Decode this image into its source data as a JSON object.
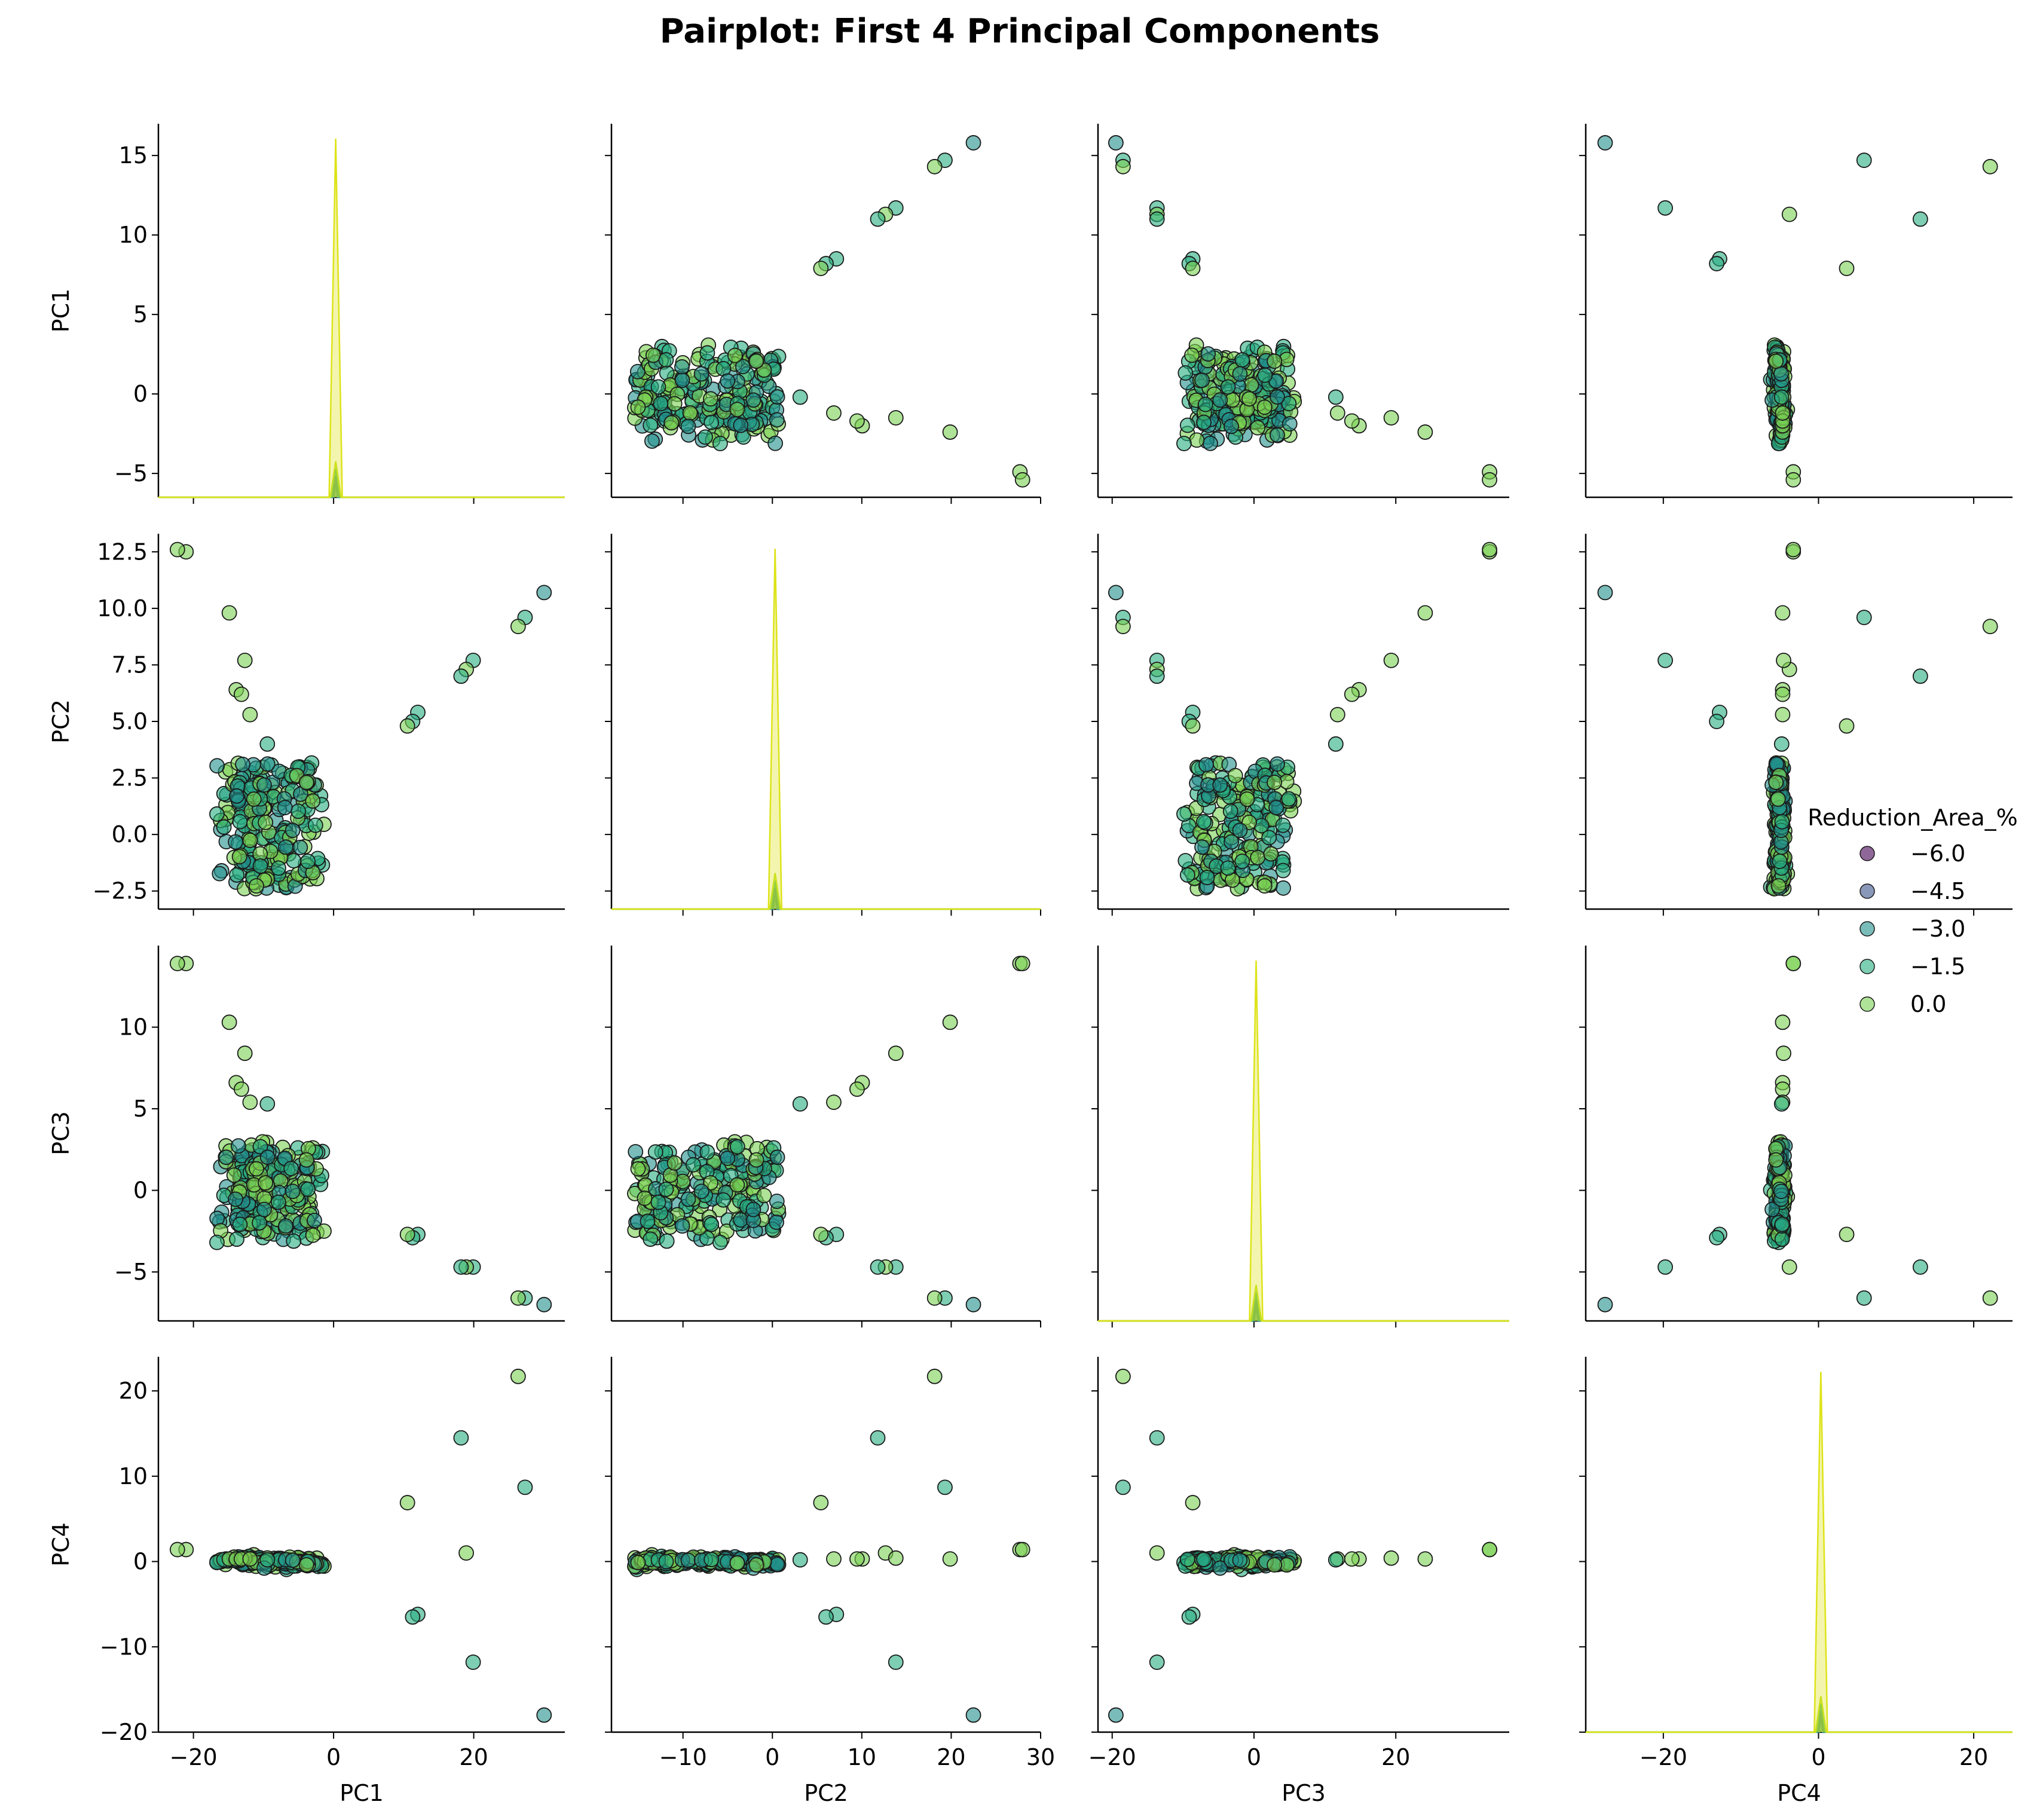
{
  "chart_data": {
    "type": "scatter",
    "title": "Pairplot: First 4 Principal Components",
    "variables": [
      "PC1",
      "PC2",
      "PC3",
      "PC4"
    ],
    "hue": {
      "name": "Reduction_Area_%",
      "colormap": "viridis",
      "entries": [
        {
          "label": "−6.0",
          "color": "#440154"
        },
        {
          "label": "−4.5",
          "color": "#3b528b"
        },
        {
          "label": "−3.0",
          "color": "#21908c"
        },
        {
          "label": "−1.5",
          "color": "#27ad81"
        },
        {
          "label": "0.0",
          "color": "#7ad151"
        }
      ]
    },
    "legend_position": "right",
    "grid": false,
    "axes": {
      "PC1": {
        "range": [
          -6.5,
          17
        ],
        "ticks": [
          -5,
          0,
          5,
          10,
          15
        ],
        "tick_labels": [
          "−5",
          "0",
          "5",
          "10",
          "15"
        ],
        "diag_range": [
          -25,
          33
        ],
        "diag_ticks": [
          -20,
          0,
          20
        ],
        "diag_tick_labels": [
          "−20",
          "0",
          "20"
        ]
      },
      "PC2": {
        "range": [
          -3.3,
          13.3
        ],
        "ticks": [
          -2.5,
          0.0,
          2.5,
          5.0,
          7.5,
          10.0,
          12.5
        ],
        "tick_labels": [
          "−2.5",
          "0.0",
          "2.5",
          "5.0",
          "7.5",
          "10.0",
          "12.5"
        ],
        "diag_range": [
          -18,
          30
        ],
        "diag_ticks": [
          -10,
          0,
          10,
          20,
          30
        ],
        "diag_tick_labels": [
          "−10",
          "0",
          "10",
          "20",
          "30"
        ]
      },
      "PC3": {
        "range": [
          -8,
          15
        ],
        "ticks": [
          -5,
          0,
          5,
          10
        ],
        "tick_labels": [
          "−5",
          "0",
          "5",
          "10"
        ],
        "diag_range": [
          -22,
          36
        ],
        "diag_ticks": [
          -20,
          0,
          20
        ],
        "diag_tick_labels": [
          "−20",
          "0",
          "20"
        ]
      },
      "PC4": {
        "range": [
          -20,
          24
        ],
        "ticks": [
          -20,
          -10,
          0,
          10,
          20
        ],
        "tick_labels": [
          "−20",
          "−10",
          "0",
          "10",
          "20"
        ],
        "diag_range": [
          -30,
          25
        ],
        "diag_ticks": [
          -20,
          0,
          20
        ],
        "diag_tick_labels": [
          "−20",
          "0",
          "20"
        ]
      }
    },
    "outliers": [
      {
        "PC1": 15.8,
        "PC2": 10.7,
        "PC3": -7.0,
        "PC4": -18.0,
        "hue": 2
      },
      {
        "PC1": 14.7,
        "PC2": 9.6,
        "PC3": -6.6,
        "PC4": 8.7,
        "hue": 3
      },
      {
        "PC1": 14.3,
        "PC2": 9.2,
        "PC3": -6.6,
        "PC4": 21.7,
        "hue": 4
      },
      {
        "PC1": 11.7,
        "PC2": 7.7,
        "PC3": -4.7,
        "PC4": -11.8,
        "hue": 3
      },
      {
        "PC1": 11.3,
        "PC2": 7.3,
        "PC3": -4.7,
        "PC4": 1.0,
        "hue": 4
      },
      {
        "PC1": 11.0,
        "PC2": 7.0,
        "PC3": -4.7,
        "PC4": 14.5,
        "hue": 3
      },
      {
        "PC1": 8.5,
        "PC2": 5.4,
        "PC3": -2.7,
        "PC4": -6.2,
        "hue": 3
      },
      {
        "PC1": 8.2,
        "PC2": 5.0,
        "PC3": -2.9,
        "PC4": -6.5,
        "hue": 3
      },
      {
        "PC1": 7.9,
        "PC2": 4.8,
        "PC3": -2.7,
        "PC4": 6.9,
        "hue": 4
      },
      {
        "PC1": -2.4,
        "PC2": 9.8,
        "PC3": 10.3,
        "PC4": 0.3,
        "hue": 4
      },
      {
        "PC1": -4.9,
        "PC2": 12.5,
        "PC3": 13.9,
        "PC4": 1.4,
        "hue": 4
      },
      {
        "PC1": -5.4,
        "PC2": 12.6,
        "PC3": 13.9,
        "PC4": 1.4,
        "hue": 4
      },
      {
        "PC1": -1.5,
        "PC2": 7.7,
        "PC3": 8.4,
        "PC4": 0.4,
        "hue": 4
      },
      {
        "PC1": -2.0,
        "PC2": 6.4,
        "PC3": 6.6,
        "PC4": 0.3,
        "hue": 4
      },
      {
        "PC1": -1.7,
        "PC2": 6.2,
        "PC3": 6.2,
        "PC4": 0.3,
        "hue": 4
      },
      {
        "PC1": -1.2,
        "PC2": 5.3,
        "PC3": 5.4,
        "PC4": 0.3,
        "hue": 4
      },
      {
        "PC1": -0.2,
        "PC2": 4.0,
        "PC3": 5.3,
        "PC4": 0.2,
        "hue": 3
      }
    ]
  }
}
